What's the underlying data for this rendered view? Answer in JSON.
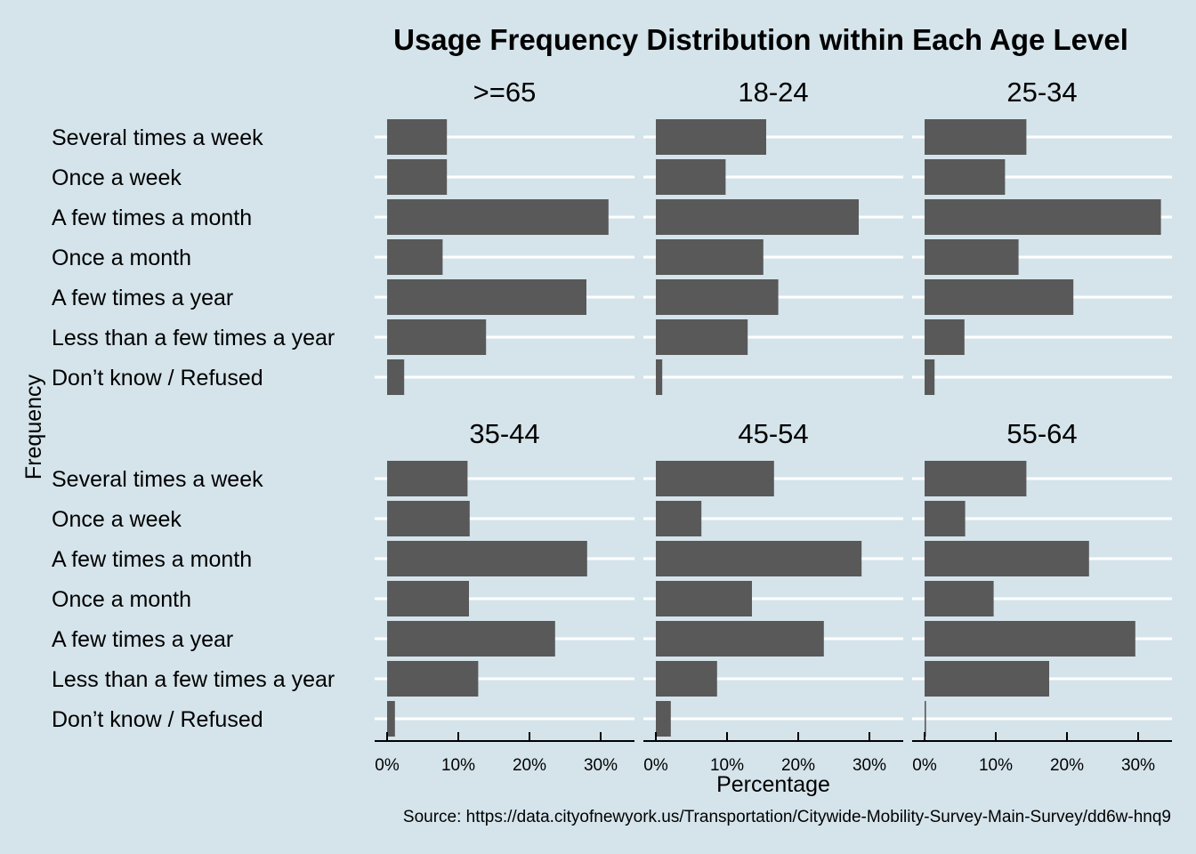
{
  "chart_data": {
    "type": "bar",
    "orientation": "horizontal",
    "title": "Usage Frequency Distribution within Each Age Level",
    "xlabel": "Percentage",
    "ylabel": "Frequency",
    "caption": "Source: https://data.cityofnewyork.us/Transportation/Citywide-Mobility-Survey-Main-Survey/dd6w-hnq9",
    "categories": [
      "Several times a week",
      "Once a week",
      "A few times a month",
      "Once a month",
      "A few times a year",
      "Less than a few times a year",
      "Don’t know / Refused"
    ],
    "xlim": [
      0,
      35
    ],
    "xticks": [
      0,
      10,
      20,
      30
    ],
    "xtick_labels": [
      "0%",
      "10%",
      "20%",
      "30%"
    ],
    "grid": "horizontal",
    "layout": "facets 3 columns x 2 rows",
    "bar_color": "#595959",
    "background_color": "#d5e4eb",
    "facets": [
      {
        "name": ">=65",
        "values": [
          8.4,
          8.4,
          31.1,
          7.8,
          28.0,
          13.9,
          2.4
        ]
      },
      {
        "name": "18-24",
        "values": [
          15.5,
          9.8,
          28.5,
          15.1,
          17.2,
          12.9,
          0.9
        ]
      },
      {
        "name": "25-34",
        "values": [
          14.3,
          11.3,
          33.2,
          13.2,
          20.9,
          5.6,
          1.4
        ]
      },
      {
        "name": "35-44",
        "values": [
          11.3,
          11.6,
          28.1,
          11.5,
          23.6,
          12.8,
          1.1
        ]
      },
      {
        "name": "45-54",
        "values": [
          16.6,
          6.4,
          28.9,
          13.5,
          23.6,
          8.6,
          2.1
        ]
      },
      {
        "name": "55-64",
        "values": [
          14.3,
          5.7,
          23.1,
          9.7,
          29.6,
          17.5,
          0.2
        ]
      }
    ]
  }
}
